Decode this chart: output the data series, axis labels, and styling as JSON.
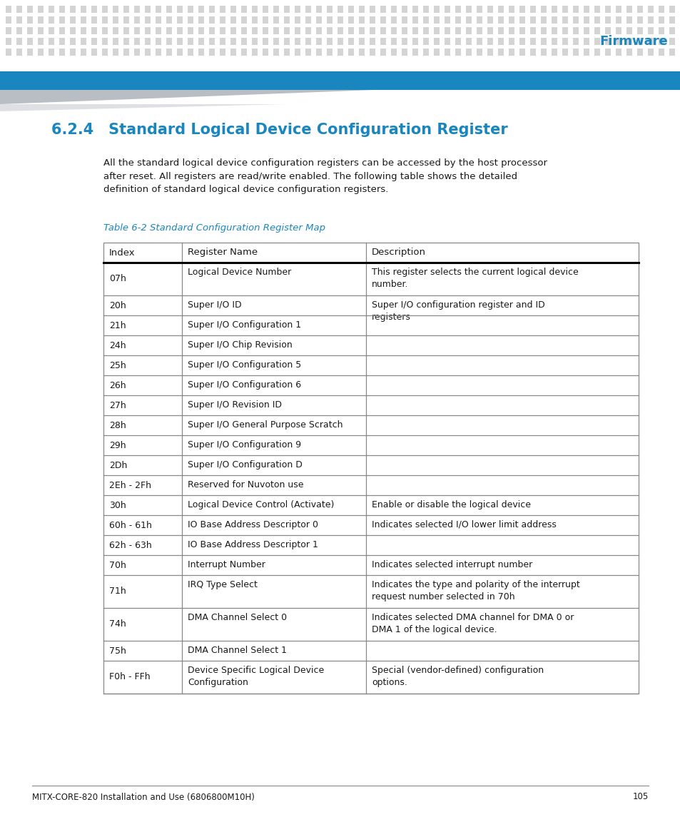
{
  "page_title": "Firmware",
  "section_title": "6.2.4 Standard Logical Device Configuration Register",
  "body_text": "All the standard logical device configuration registers can be accessed by the host processor\nafter reset. All registers are read/write enabled. The following table shows the detailed\ndefinition of standard logical device configuration registers.",
  "table_caption": "Table 6-2 Standard Configuration Register Map",
  "table_headers": [
    "Index",
    "Register Name",
    "Description"
  ],
  "table_rows": [
    [
      "07h",
      "Logical Device Number",
      "This register selects the current logical device\nnumber."
    ],
    [
      "20h",
      "Super I/O ID",
      "Super I/O configuration register and ID\nregisters"
    ],
    [
      "21h",
      "Super I/O Configuration 1",
      ""
    ],
    [
      "24h",
      "Super I/O Chip Revision",
      ""
    ],
    [
      "25h",
      "Super I/O Configuration 5",
      ""
    ],
    [
      "26h",
      "Super I/O Configuration 6",
      ""
    ],
    [
      "27h",
      "Super I/O Revision ID",
      ""
    ],
    [
      "28h",
      "Super I/O General Purpose Scratch",
      ""
    ],
    [
      "29h",
      "Super I/O Configuration 9",
      ""
    ],
    [
      "2Dh",
      "Super I/O Configuration D",
      ""
    ],
    [
      "2Eh - 2Fh",
      "Reserved for Nuvoton use",
      ""
    ],
    [
      "30h",
      "Logical Device Control (Activate)",
      "Enable or disable the logical device"
    ],
    [
      "60h - 61h",
      "IO Base Address Descriptor 0",
      "Indicates selected I/O lower limit address"
    ],
    [
      "62h - 63h",
      "IO Base Address Descriptor 1",
      ""
    ],
    [
      "70h",
      "Interrupt Number",
      "Indicates selected interrupt number"
    ],
    [
      "71h",
      "IRQ Type Select",
      "Indicates the type and polarity of the interrupt\nrequest number selected in 70h"
    ],
    [
      "74h",
      "DMA Channel Select 0",
      "Indicates selected DMA channel for DMA 0 or\nDMA 1 of the logical device."
    ],
    [
      "75h",
      "DMA Channel Select 1",
      ""
    ],
    [
      "F0h - FFh",
      "Device Specific Logical Device\nConfiguration",
      "Special (vendor-defined) configuration\noptions."
    ]
  ],
  "footer_text": "MITX-CORE-820 Installation and Use (6806800M10H)",
  "footer_page": "105",
  "blue_color": "#1a86bf",
  "text_color": "#1a1a1a",
  "dot_pattern_color": "#d4d4d4",
  "blue_bar_color": "#1a86bf",
  "body_bg": "#ffffff",
  "grid_color": "#888888",
  "thick_line_color": "#000000"
}
